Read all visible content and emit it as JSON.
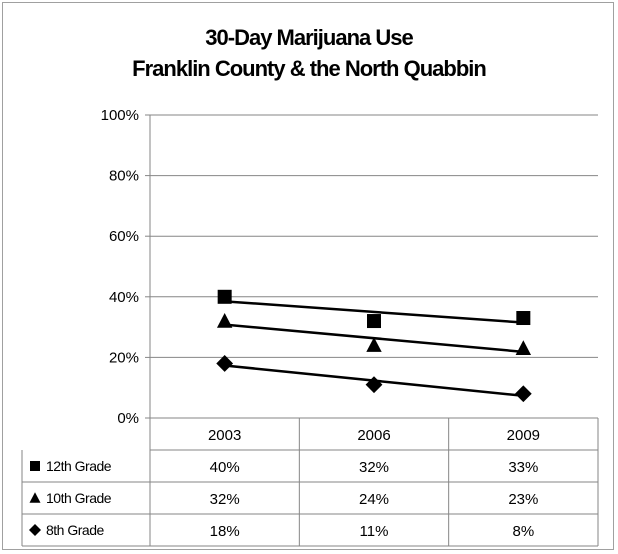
{
  "chart_data": {
    "type": "line",
    "title_lines": [
      "30-Day Marijuana Use",
      "Franklin County & the North Quabbin"
    ],
    "categories": [
      "2003",
      "2006",
      "2009"
    ],
    "ylim": [
      0,
      100
    ],
    "yticks": [
      "0%",
      "20%",
      "40%",
      "60%",
      "80%",
      "100%"
    ],
    "grid": true,
    "legend": "data-table",
    "series": [
      {
        "name": "12th Grade",
        "marker": "square",
        "values": [
          40,
          32,
          33
        ],
        "labels": [
          "40%",
          "32%",
          "33%"
        ]
      },
      {
        "name": "10th Grade",
        "marker": "triangle",
        "values": [
          32,
          24,
          23
        ],
        "labels": [
          "32%",
          "24%",
          "23%"
        ]
      },
      {
        "name": "8th Grade",
        "marker": "diamond",
        "values": [
          18,
          11,
          8
        ],
        "labels": [
          "18%",
          "11%",
          "8%"
        ]
      }
    ],
    "trendlines": true,
    "colors": {
      "series": "#000000",
      "grid": "#868686",
      "border": "#a0a0a0"
    }
  }
}
